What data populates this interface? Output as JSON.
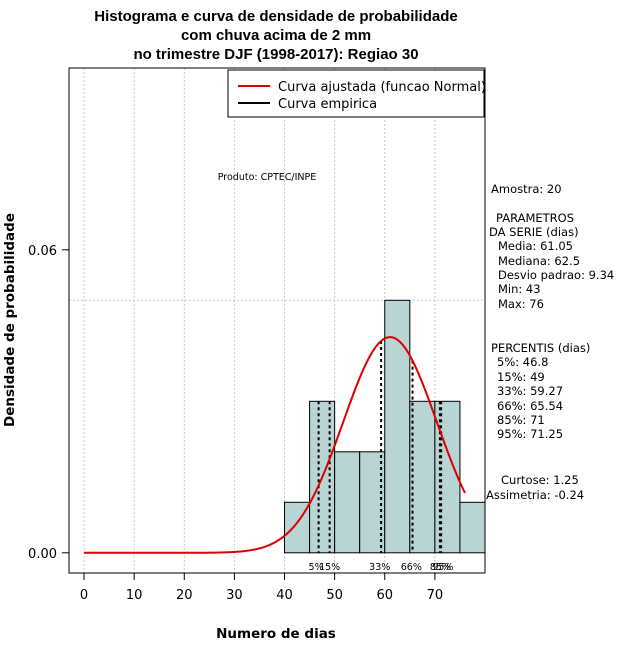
{
  "chart_data": {
    "type": "histogram",
    "title_lines": [
      "Histograma e curva de densidade de probabilidade",
      "com chuva acima de 2 mm",
      "no trimestre DJF (1998-2017): Regiao 30"
    ],
    "xlabel": "Numero de dias",
    "ylabel": "Densidade de probabilidade",
    "xlim": [
      -3,
      80
    ],
    "ylim": [
      -0.004,
      0.096
    ],
    "x_ticks": [
      0,
      10,
      20,
      30,
      40,
      50,
      60,
      70
    ],
    "x_tick_labels": [
      "0",
      "10",
      "20",
      "30",
      "40",
      "50",
      "60",
      "70"
    ],
    "y_ticks": [
      0.0,
      0.06
    ],
    "y_tick_labels": [
      "0.00",
      "0.06"
    ],
    "reference_line_y": 0.05,
    "bins": [
      {
        "start": 40,
        "end": 45,
        "density": 0.01
      },
      {
        "start": 45,
        "end": 50,
        "density": 0.03
      },
      {
        "start": 50,
        "end": 55,
        "density": 0.02
      },
      {
        "start": 55,
        "end": 60,
        "density": 0.02
      },
      {
        "start": 60,
        "end": 65,
        "density": 0.05
      },
      {
        "start": 65,
        "end": 70,
        "density": 0.03
      },
      {
        "start": 70,
        "end": 75,
        "density": 0.03
      },
      {
        "start": 75,
        "end": 80,
        "density": 0.01
      }
    ],
    "normal_fit": {
      "mean": 61.05,
      "sd": 9.34,
      "x_from": 0,
      "x_to": 76,
      "color": "#dd0000"
    },
    "percentile_lines": [
      {
        "label": "5%",
        "x": 46.8
      },
      {
        "label": "15%",
        "x": 49
      },
      {
        "label": "33%",
        "x": 59.27
      },
      {
        "label": "66%",
        "x": 65.54
      },
      {
        "label": "85%",
        "x": 71
      },
      {
        "label": "95%",
        "x": 71.25
      }
    ],
    "percentile_text_labels": [
      {
        "text": "5%",
        "x": 46.3
      },
      {
        "text": "15%",
        "x": 49
      },
      {
        "text": "33%",
        "x": 59
      },
      {
        "text": "66%",
        "x": 65.3
      },
      {
        "text": "85%",
        "x": 71.1
      },
      {
        "text": "95%",
        "x": 71.6
      }
    ],
    "bar_fill": "#b8d4d4",
    "legend": [
      {
        "label": "Curva ajustada (funcao Normal)",
        "color": "#dd0000"
      },
      {
        "label": "Curva empirica",
        "color": "#000000"
      }
    ],
    "legend_position": "top-right",
    "grid": true
  },
  "annotation": {
    "product": "Produto: CPTEC/INPE"
  },
  "stats_panel": {
    "sample": "Amostra: 20",
    "params_title_1": "PARAMETROS",
    "params_title_2": "DA SERIE (dias)",
    "params": [
      "Media: 61.05",
      "Mediana: 62.5",
      "Desvio padrao: 9.34",
      "Min: 43",
      "Max: 76"
    ],
    "percentis_title": "PERCENTIS (dias)",
    "percentis": [
      "5%: 46.8",
      "15%: 49",
      "33%: 59.27",
      "66%: 65.54",
      "85%: 71",
      "95%: 71.25"
    ],
    "curtose": "Curtose: 1.25",
    "assimetria": "Assimetria: -0.24"
  }
}
